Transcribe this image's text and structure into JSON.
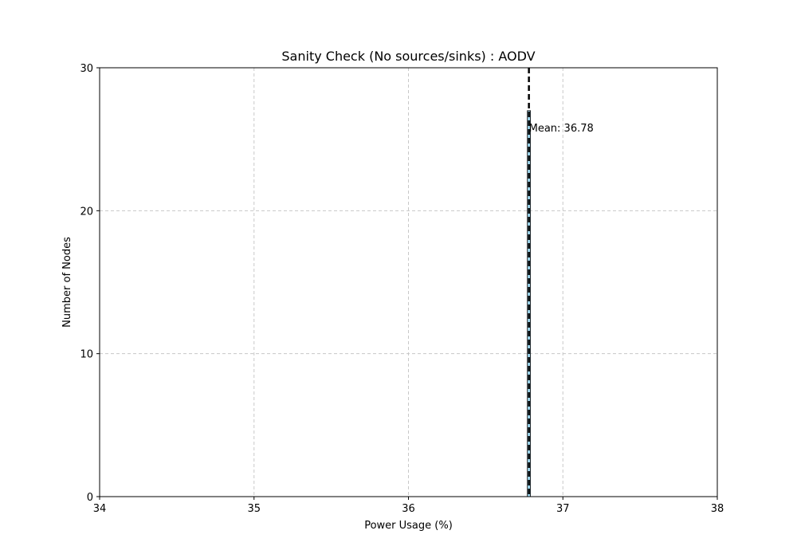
{
  "chart_data": {
    "type": "bar",
    "title": "Sanity Check (No sources/sinks) : AODV",
    "xlabel": "Power Usage (%)",
    "ylabel": "Number of Nodes",
    "xlim": [
      34,
      38
    ],
    "ylim": [
      0,
      30
    ],
    "x_ticks": [
      34,
      35,
      36,
      37,
      38
    ],
    "y_ticks": [
      0,
      10,
      20,
      30
    ],
    "grid": true,
    "bars": [
      {
        "x_start": 36.77,
        "x_end": 36.79,
        "count": 27
      }
    ],
    "mean": {
      "value": 36.78,
      "label": "Mean: 36.78"
    },
    "colors": {
      "bar_fill": "#87ceeb",
      "bar_edge": "#000000",
      "mean_line": "#000000",
      "grid": "#c8c8c8"
    }
  }
}
